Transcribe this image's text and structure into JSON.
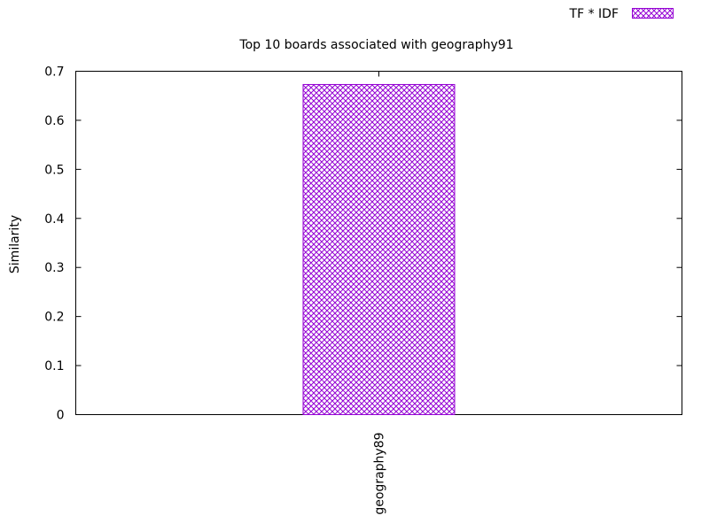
{
  "chart_data": {
    "type": "bar",
    "title": "Top 10 boards associated with geography91",
    "xlabel": "",
    "ylabel": "Similarity",
    "categories": [
      "geography89"
    ],
    "series": [
      {
        "name": "TF * IDF",
        "values": [
          0.673
        ],
        "color": "#9400d3",
        "pattern": "crosshatch"
      }
    ],
    "ylim": [
      0,
      0.7
    ],
    "yticks": [
      "0",
      "0.1",
      "0.2",
      "0.3",
      "0.4",
      "0.5",
      "0.6",
      "0.7"
    ],
    "grid": false,
    "legend_position": "top-right"
  }
}
